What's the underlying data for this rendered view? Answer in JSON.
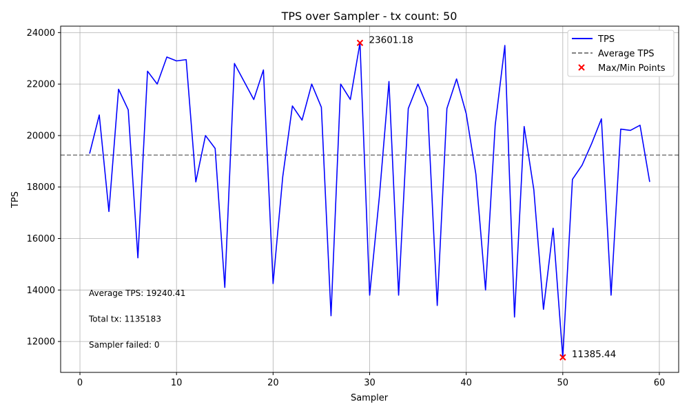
{
  "chart_data": {
    "type": "line",
    "title": "TPS over Sampler - tx count: 50",
    "xlabel": "Sampler",
    "ylabel": "TPS",
    "xlim": [
      -2,
      62
    ],
    "ylim": [
      10800,
      24250
    ],
    "xticks": [
      0,
      10,
      20,
      30,
      40,
      50,
      60
    ],
    "yticks": [
      12000,
      14000,
      16000,
      18000,
      20000,
      22000,
      24000
    ],
    "grid": true,
    "legend_position": "top-right",
    "colors": {
      "line": "#0000ff",
      "average": "#808080",
      "points": "#ff0000"
    },
    "series": [
      {
        "name": "TPS",
        "x": [
          1,
          2,
          3,
          4,
          5,
          6,
          7,
          8,
          9,
          10,
          11,
          12,
          13,
          14,
          15,
          16,
          17,
          18,
          19,
          20,
          21,
          22,
          23,
          24,
          25,
          26,
          27,
          28,
          29,
          30,
          31,
          32,
          33,
          34,
          35,
          36,
          37,
          38,
          39,
          40,
          41,
          42,
          43,
          44,
          45,
          46,
          47,
          48,
          49,
          50,
          51,
          52,
          53,
          54,
          55,
          56,
          57,
          58,
          59
        ],
        "values": [
          19300,
          20800,
          17050,
          21800,
          21000,
          15250,
          22500,
          22000,
          23050,
          22900,
          22950,
          18200,
          20000,
          19500,
          14100,
          22800,
          22100,
          21400,
          22550,
          14250,
          18400,
          21150,
          20600,
          22000,
          21100,
          13000,
          22000,
          21400,
          23601.18,
          13800,
          17600,
          22100,
          13800,
          21050,
          22000,
          21100,
          13400,
          21050,
          22200,
          20850,
          18500,
          14000,
          20400,
          23500,
          12950,
          20350,
          17900,
          13250,
          16400,
          11385.44,
          18300,
          18850,
          19700,
          20650,
          13800,
          20250,
          20200,
          20400,
          18200
        ]
      },
      {
        "name": "Average TPS",
        "value": 19240.41
      },
      {
        "name": "Max/Min Points",
        "points": [
          {
            "x": 29,
            "y": 23601.18
          },
          {
            "x": 50,
            "y": 11385.44
          }
        ]
      }
    ],
    "point_labels": [
      "23601.18",
      "11385.44"
    ],
    "annotations": [
      "Average TPS: 19240.41",
      "Total tx: 1135183",
      "Sampler failed: 0"
    ]
  }
}
